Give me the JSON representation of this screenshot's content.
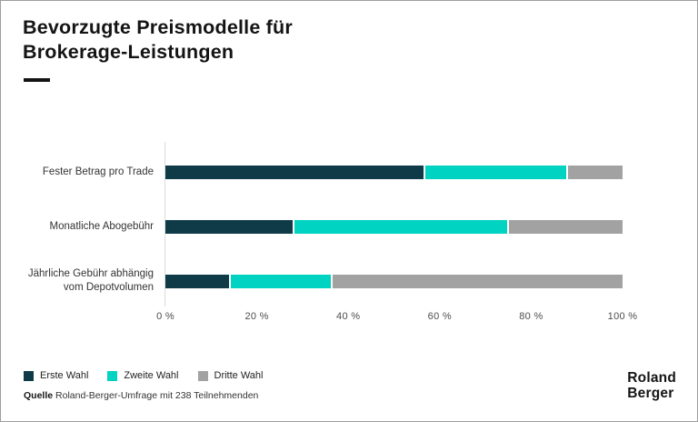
{
  "header": {
    "title_line1": "Bevorzugte Preismodelle für",
    "title_line2": "Brokerage-Leistungen"
  },
  "chart_data": {
    "type": "bar",
    "orientation": "horizontal",
    "stacked": true,
    "title": "Bevorzugte Preismodelle für Brokerage-Leistungen",
    "unit": "%",
    "xlim": [
      0,
      100
    ],
    "x_ticks": [
      0,
      20,
      40,
      60,
      80,
      100
    ],
    "x_tick_suffix": " %",
    "grid": false,
    "legend_position": "bottom-left",
    "categories": [
      "Fester Betrag pro Trade",
      "Monatliche Abogebühr",
      "Jährliche Gebühr abhängig\nvom Depotvolumen"
    ],
    "series": [
      {
        "name": "Erste Wahl",
        "color": "#0F3A47",
        "values": [
          57,
          28,
          14
        ]
      },
      {
        "name": "Zweite Wahl",
        "color": "#00D3C1",
        "values": [
          31,
          47,
          22
        ]
      },
      {
        "name": "Dritte Wahl",
        "color": "#A2A2A2",
        "values": [
          12,
          25,
          64
        ]
      }
    ]
  },
  "footer": {
    "source_label": "Quelle",
    "source_text": "Roland-Berger-Umfrage mit 238 Teilnehmenden",
    "logo_line1": "Roland",
    "logo_line2": "Berger"
  }
}
